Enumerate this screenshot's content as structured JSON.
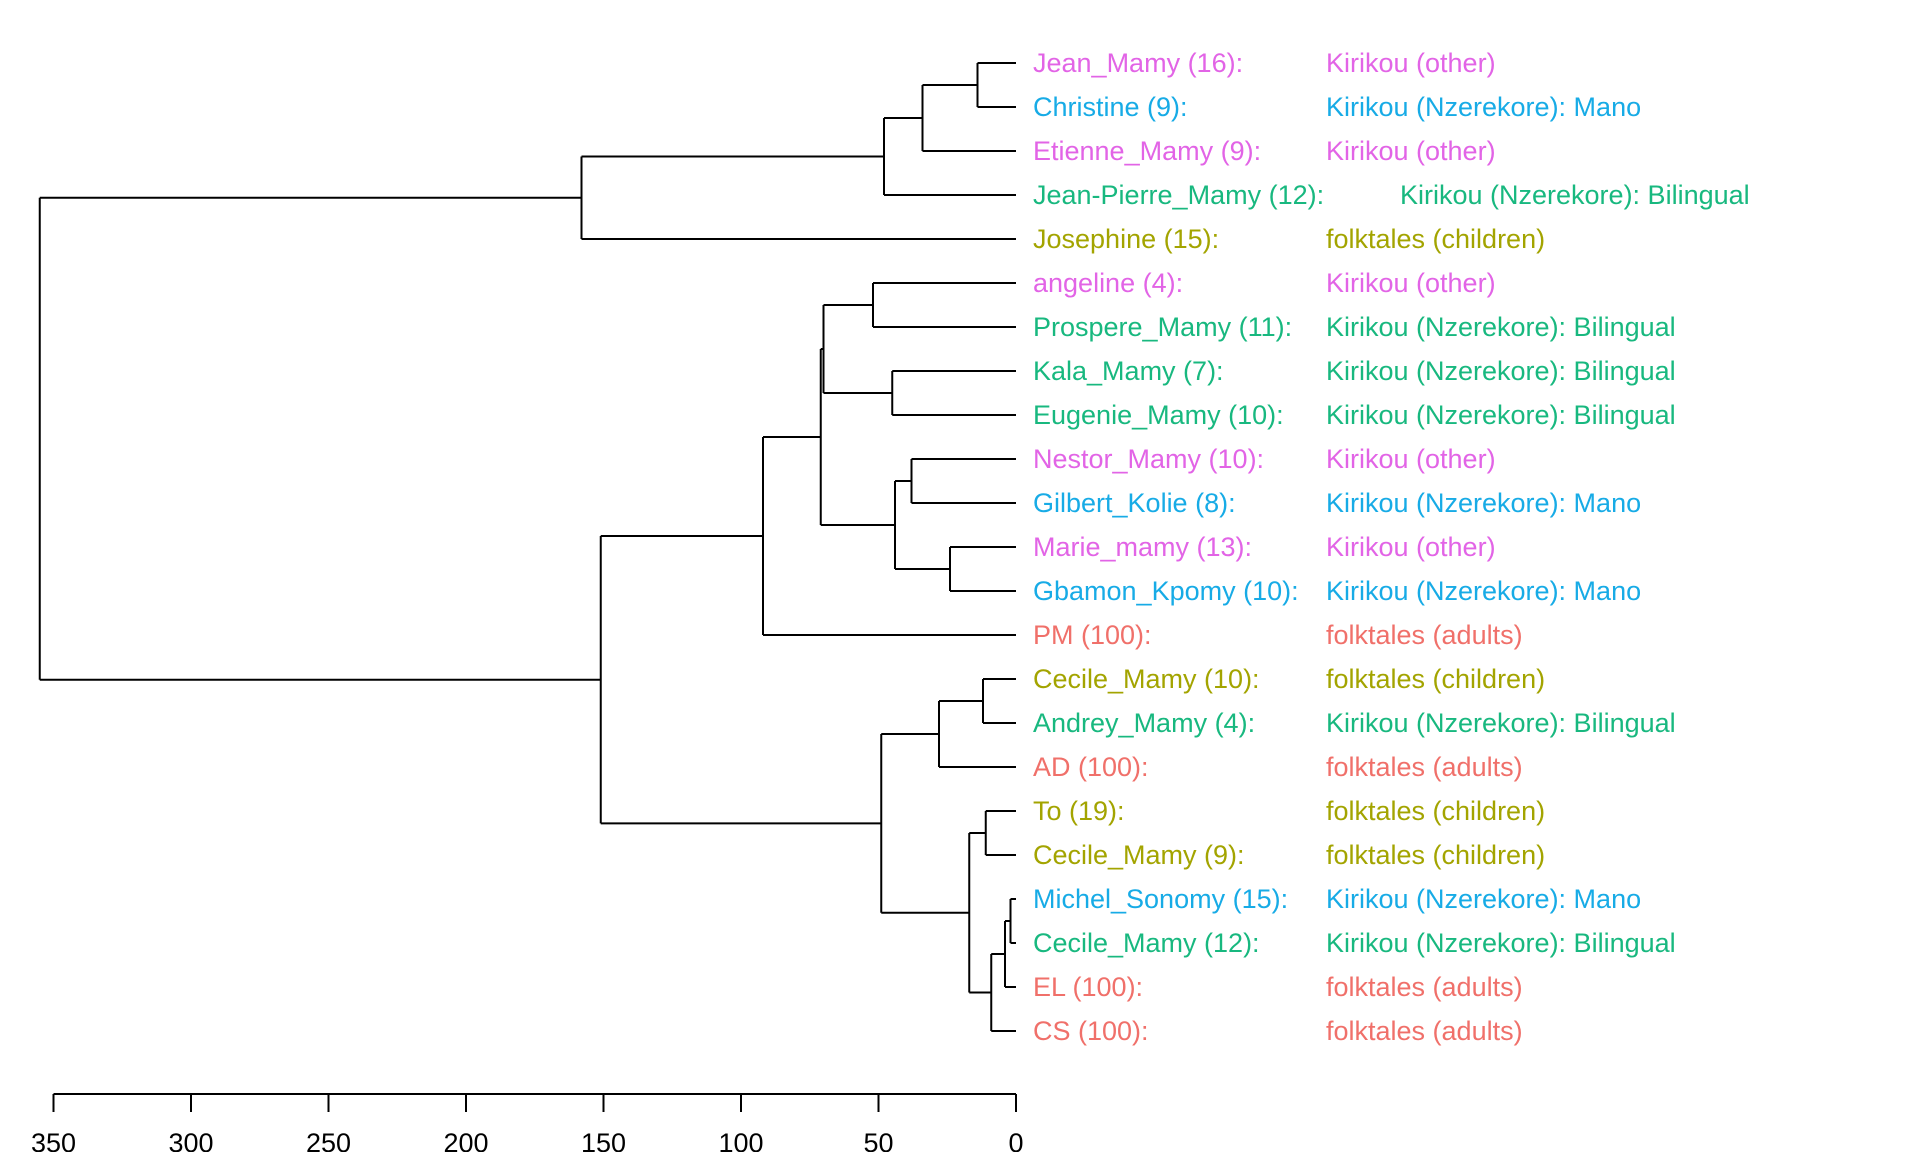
{
  "chart_data": {
    "type": "dendrogram",
    "title": "",
    "xlabel": "",
    "ylabel": "",
    "xlim": [
      350,
      0
    ],
    "axis_orientation": "reversed (0 at right)",
    "ticks": [
      "350",
      "300",
      "250",
      "200",
      "150",
      "100",
      "50",
      "0"
    ],
    "tick_values": [
      350,
      300,
      250,
      200,
      150,
      100,
      50,
      0
    ],
    "group_colors": {
      "Kirikou (other)": "#e264e6",
      "Kirikou (Nzerekore): Mano": "#17abe6",
      "Kirikou (Nzerekore): Bilingual": "#18b87f",
      "folktales (children)": "#a3a400",
      "folktales (adults)": "#f0706a"
    },
    "leaves": [
      {
        "name": "Jean_Mamy (16):",
        "group": "Kirikou (other)",
        "color": "#e264e6"
      },
      {
        "name": "Christine (9):",
        "group": "Kirikou (Nzerekore): Mano",
        "color": "#17abe6"
      },
      {
        "name": "Etienne_Mamy (9):",
        "group": "Kirikou (other)",
        "color": "#e264e6"
      },
      {
        "name": "Jean-Pierre_Mamy (12):",
        "group": "Kirikou (Nzerekore): Bilingual",
        "color": "#18b87f"
      },
      {
        "name": "Josephine (15):",
        "group": "folktales (children)",
        "color": "#a3a400"
      },
      {
        "name": "angeline (4):",
        "group": "Kirikou (other)",
        "color": "#e264e6"
      },
      {
        "name": "Prospere_Mamy (11):",
        "group": "Kirikou (Nzerekore): Bilingual",
        "color": "#18b87f"
      },
      {
        "name": "Kala_Mamy (7):",
        "group": "Kirikou (Nzerekore): Bilingual",
        "color": "#18b87f"
      },
      {
        "name": "Eugenie_Mamy (10):",
        "group": "Kirikou (Nzerekore): Bilingual",
        "color": "#18b87f"
      },
      {
        "name": "Nestor_Mamy (10):",
        "group": "Kirikou (other)",
        "color": "#e264e6"
      },
      {
        "name": "Gilbert_Kolie (8):",
        "group": "Kirikou (Nzerekore): Mano",
        "color": "#17abe6"
      },
      {
        "name": "Marie_mamy (13):",
        "group": "Kirikou (other)",
        "color": "#e264e6"
      },
      {
        "name": "Gbamon_Kpomy (10):",
        "group": "Kirikou (Nzerekore): Mano",
        "color": "#17abe6"
      },
      {
        "name": "PM (100):",
        "group": "folktales (adults)",
        "color": "#f0706a"
      },
      {
        "name": "Cecile_Mamy (10):",
        "group": "folktales (children)",
        "color": "#a3a400"
      },
      {
        "name": "Andrey_Mamy (4):",
        "group": "Kirikou (Nzerekore): Bilingual",
        "color": "#18b87f"
      },
      {
        "name": "AD (100):",
        "group": "folktales (adults)",
        "color": "#f0706a"
      },
      {
        "name": "To (19):",
        "group": "folktales (children)",
        "color": "#a3a400"
      },
      {
        "name": "Cecile_Mamy (9):",
        "group": "folktales (children)",
        "color": "#a3a400"
      },
      {
        "name": "Michel_Sonomy (15):",
        "group": "Kirikou (Nzerekore): Mano",
        "color": "#17abe6"
      },
      {
        "name": "Cecile_Mamy (12):",
        "group": "Kirikou (Nzerekore): Bilingual",
        "color": "#18b87f"
      },
      {
        "name": "EL (100):",
        "group": "folktales (adults)",
        "color": "#f0706a"
      },
      {
        "name": "CS (100):",
        "group": "folktales (adults)",
        "color": "#f0706a"
      }
    ],
    "merges": [
      {
        "id": "n1",
        "a": "L0",
        "b": "L1",
        "height": 14
      },
      {
        "id": "n2",
        "a": "n1",
        "b": "L2",
        "height": 34
      },
      {
        "id": "n3",
        "a": "n2",
        "b": "L3",
        "height": 48
      },
      {
        "id": "n4",
        "a": "n3",
        "b": "L4",
        "height": 158
      },
      {
        "id": "n5",
        "a": "L5",
        "b": "L6",
        "height": 52
      },
      {
        "id": "n6",
        "a": "L7",
        "b": "L8",
        "height": 45
      },
      {
        "id": "n7",
        "a": "n5",
        "b": "n6",
        "height": 70
      },
      {
        "id": "n8",
        "a": "L9",
        "b": "L10",
        "height": 38
      },
      {
        "id": "n9",
        "a": "L11",
        "b": "L12",
        "height": 24
      },
      {
        "id": "n10",
        "a": "n8",
        "b": "n9",
        "height": 44
      },
      {
        "id": "n11",
        "a": "n7",
        "b": "n10",
        "height": 71
      },
      {
        "id": "n12",
        "a": "n11",
        "b": "L13",
        "height": 92
      },
      {
        "id": "n13",
        "a": "L14",
        "b": "L15",
        "height": 12
      },
      {
        "id": "n14",
        "a": "n13",
        "b": "L16",
        "height": 28
      },
      {
        "id": "n15",
        "a": "L17",
        "b": "L18",
        "height": 11
      },
      {
        "id": "n16",
        "a": "L19",
        "b": "L20",
        "height": 2
      },
      {
        "id": "n17",
        "a": "n16",
        "b": "L21",
        "height": 4
      },
      {
        "id": "n18",
        "a": "n17",
        "b": "L22",
        "height": 9
      },
      {
        "id": "n19",
        "a": "n15",
        "b": "n18",
        "height": 17
      },
      {
        "id": "n20",
        "a": "n14",
        "b": "n19",
        "height": 49
      },
      {
        "id": "n21",
        "a": "n12",
        "b": "n20",
        "height": 151
      },
      {
        "id": "n22",
        "a": "n4",
        "b": "n21",
        "height": 355
      }
    ]
  }
}
